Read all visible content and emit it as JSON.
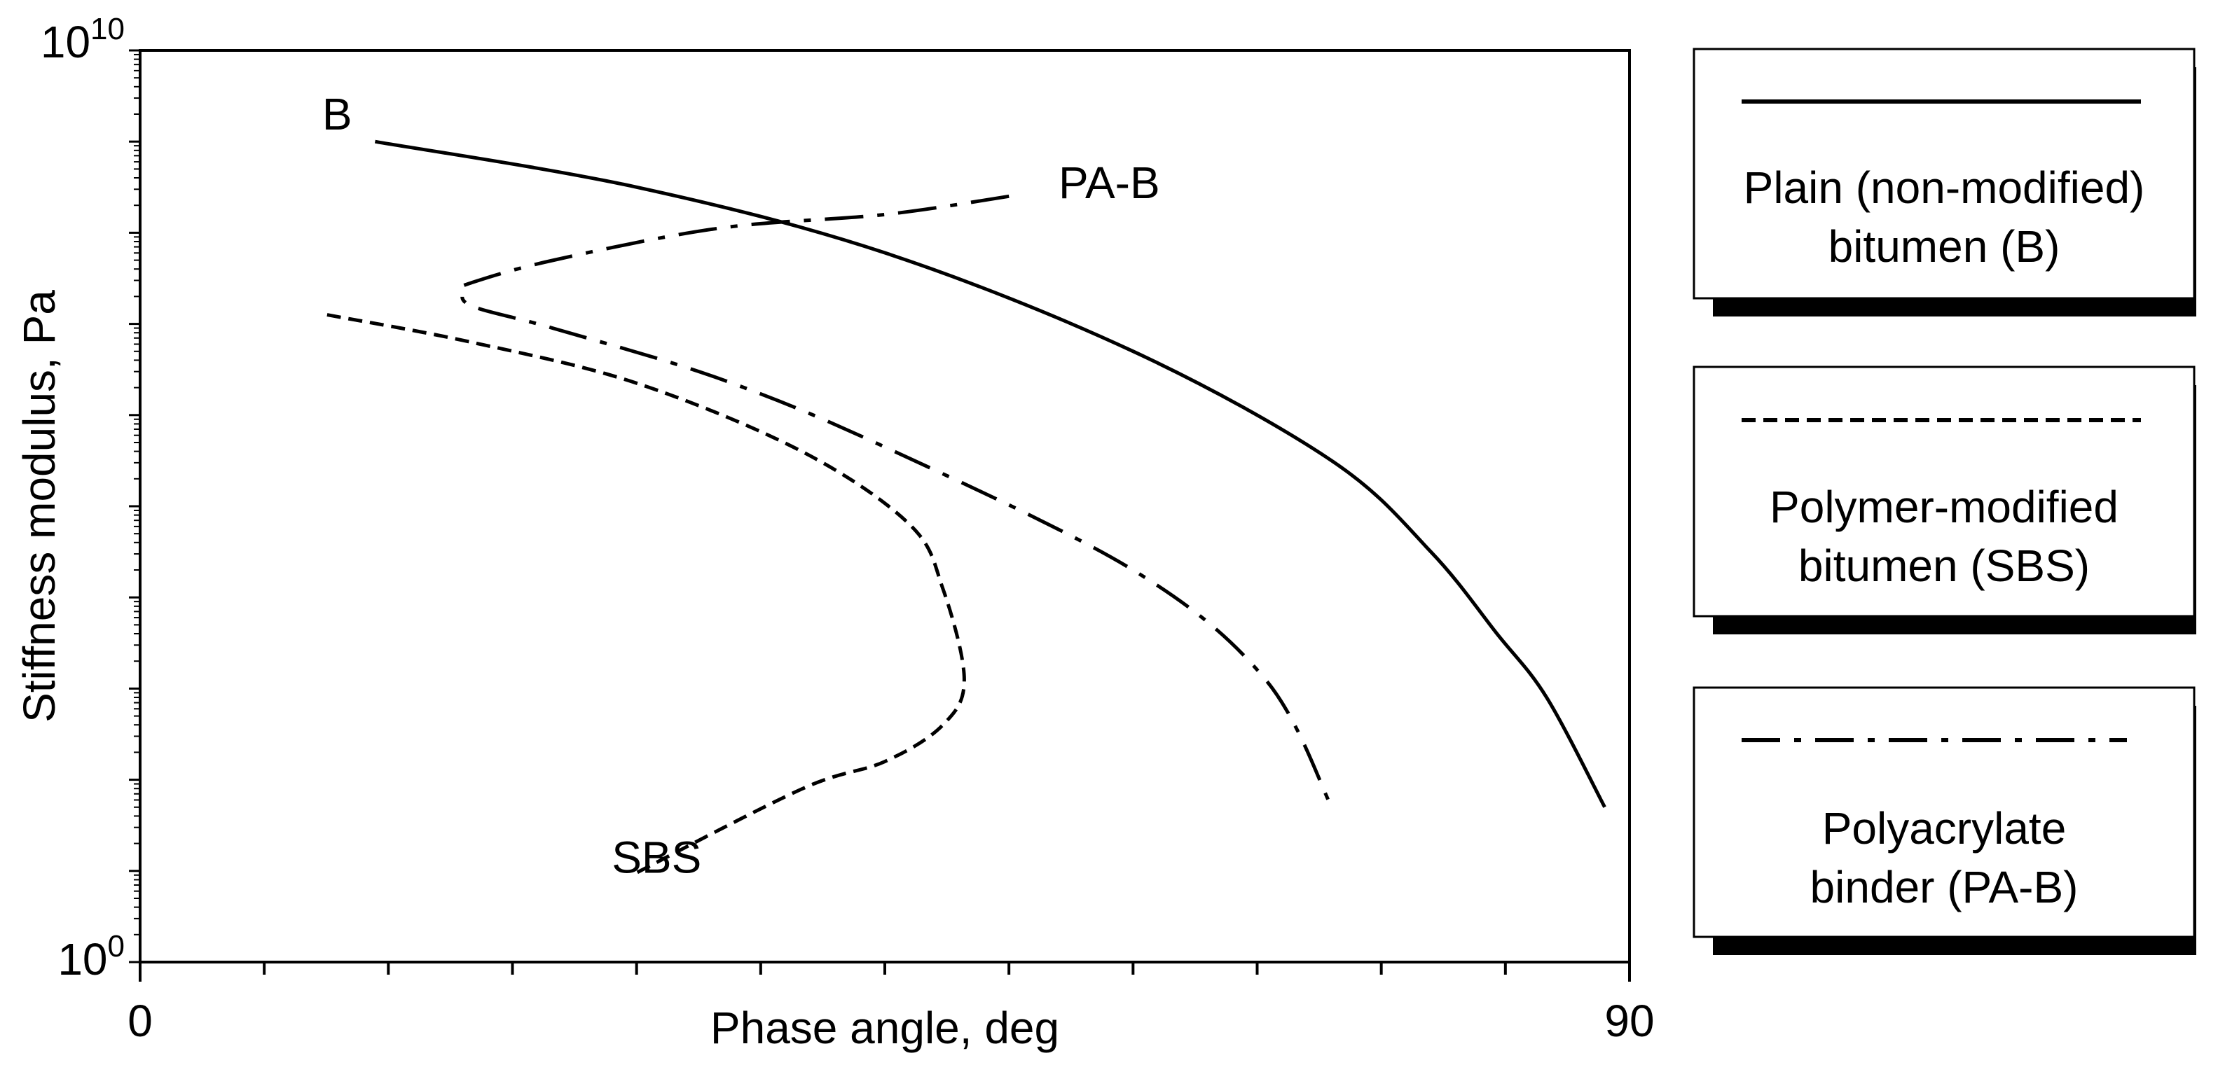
{
  "chart_data": {
    "type": "line",
    "title": "",
    "xlabel": "Phase angle, deg",
    "ylabel": "Stiffness modulus, Pa",
    "xlim": [
      0,
      90
    ],
    "ylim_exponents": [
      0,
      10
    ],
    "y_scale": "log",
    "x_tick_labels": [
      "0",
      "90"
    ],
    "x_minor_ticks": [
      7.5,
      15,
      22.5,
      30,
      37.5,
      45,
      52.5,
      60,
      67.5,
      75,
      82.5
    ],
    "y_tick_base": "10",
    "y_tick_exponents": [
      "0",
      "10"
    ],
    "grid": false,
    "legend_position": "right",
    "series": [
      {
        "key": "B",
        "label": "B",
        "legend_lines": [
          "Plain (non-modified)",
          "bitumen (B)"
        ],
        "style": "solid",
        "points": [
          [
            14.2,
            9.0
          ],
          [
            30,
            8.5
          ],
          [
            45,
            7.78
          ],
          [
            60,
            6.7
          ],
          [
            72,
            5.5
          ],
          [
            78,
            4.5
          ],
          [
            82,
            3.6
          ],
          [
            85,
            2.9
          ],
          [
            88.5,
            1.7
          ]
        ],
        "label_pos": [
          11,
          9.3
        ]
      },
      {
        "key": "SBS",
        "label": "SBS",
        "legend_lines": [
          "Polymer-modified",
          "bitumen (SBS)"
        ],
        "style": "dash",
        "points": [
          [
            11.3,
            7.1
          ],
          [
            20,
            6.8
          ],
          [
            30,
            6.35
          ],
          [
            40,
            5.6
          ],
          [
            46.5,
            4.8
          ],
          [
            48.5,
            4.1
          ],
          [
            49.8,
            3.1
          ],
          [
            48.5,
            2.6
          ],
          [
            45,
            2.2
          ],
          [
            40,
            1.9
          ],
          [
            30,
            0.98
          ]
        ],
        "label_pos": [
          28.5,
          1.15
        ]
      },
      {
        "key": "PA-B",
        "label": "PA-B",
        "legend_lines": [
          "Polyacrylate",
          "binder (PA-B)"
        ],
        "style": "dashdot",
        "points": [
          [
            52.5,
            8.4
          ],
          [
            45,
            8.2
          ],
          [
            35,
            8.05
          ],
          [
            25,
            7.7
          ],
          [
            20,
            7.45
          ],
          [
            19.6,
            7.38
          ],
          [
            20,
            7.2
          ],
          [
            25,
            6.95
          ],
          [
            35,
            6.4
          ],
          [
            45,
            5.65
          ],
          [
            60,
            4.3
          ],
          [
            68,
            3.1
          ],
          [
            72,
            1.7
          ]
        ],
        "label_pos": [
          55.5,
          8.55
        ]
      }
    ]
  }
}
